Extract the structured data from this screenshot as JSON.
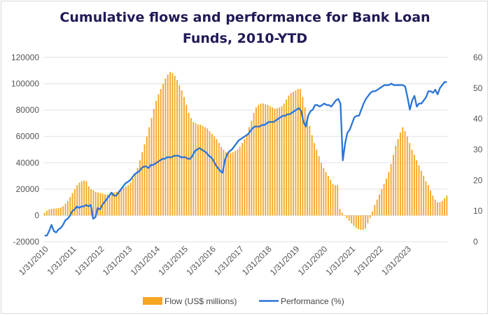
{
  "chart_data": {
    "type": "bar+line",
    "title_line1": "Cumulative flows and performance for Bank Loan",
    "title_line2": "Funds, 2010-YTD",
    "left_axis": {
      "ylim": [
        -20000,
        120000
      ],
      "ticks": [
        "-20000",
        "0",
        "20000",
        "40000",
        "60000",
        "80000",
        "100000",
        "120000"
      ],
      "tick_values": [
        -20000,
        0,
        20000,
        40000,
        60000,
        80000,
        100000,
        120000
      ]
    },
    "right_axis": {
      "ylim": [
        0,
        60
      ],
      "ticks": [
        "0",
        "10",
        "20",
        "30",
        "40",
        "50",
        "60"
      ],
      "tick_values": [
        0,
        10,
        20,
        30,
        40,
        50,
        60
      ]
    },
    "x_ticks": [
      "1/31/2010",
      "1/31/2011",
      "1/31/2012",
      "1/31/2013",
      "1/31/2014",
      "1/31/2015",
      "1/31/2016",
      "1/31/2017",
      "1/31/2018",
      "1/31/2019",
      "1/31/2020",
      "1/31/2021",
      "1/31/2022",
      "1/31/2023"
    ],
    "x_start": "2010-01",
    "series": [
      {
        "name": "Flow (US$ millions)",
        "kind": "bar",
        "color": "#f5a623",
        "values": [
          2000,
          3500,
          4500,
          5000,
          5200,
          5300,
          5500,
          6000,
          7000,
          9000,
          11000,
          14000,
          17000,
          20000,
          23000,
          25000,
          26000,
          26500,
          26000,
          22000,
          20000,
          19000,
          18000,
          17500,
          17000,
          16500,
          16000,
          16000,
          16500,
          17000,
          17500,
          18000,
          19000,
          20000,
          21000,
          22000,
          23000,
          25000,
          28000,
          32000,
          36000,
          42000,
          48000,
          54000,
          60000,
          67000,
          74000,
          81000,
          87000,
          92000,
          96000,
          100000,
          104000,
          107000,
          109000,
          108000,
          106000,
          103000,
          99000,
          95000,
          90000,
          84000,
          78000,
          74000,
          71000,
          70000,
          69000,
          69000,
          68000,
          67000,
          66000,
          64000,
          62000,
          60000,
          58000,
          55000,
          52000,
          50000,
          48000,
          47000,
          47500,
          48000,
          49000,
          50000,
          52000,
          55000,
          58000,
          62000,
          67000,
          72000,
          78000,
          82000,
          84000,
          85000,
          85000,
          84500,
          84000,
          83000,
          82000,
          81000,
          81500,
          82000,
          83000,
          85000,
          88000,
          91000,
          93000,
          94000,
          95000,
          96000,
          96000,
          90000,
          82000,
          75000,
          68000,
          61000,
          55000,
          50000,
          45000,
          40000,
          36000,
          33000,
          30000,
          27000,
          24000,
          23000,
          23000,
          5000,
          2000,
          0,
          -2000,
          -4000,
          -6000,
          -8000,
          -9500,
          -10500,
          -11000,
          -11000,
          -10000,
          -6000,
          -2000,
          3000,
          8000,
          12000,
          16000,
          20000,
          24000,
          28000,
          33000,
          39000,
          46000,
          53000,
          58000,
          63000,
          67000,
          64000,
          60000,
          55000,
          50000,
          46000,
          42000,
          38000,
          34000,
          30000,
          26000,
          23000,
          19000,
          15000,
          12000,
          10000,
          10000,
          11000,
          13000,
          15000
        ],
        "note_x_step": "monthly"
      },
      {
        "name": "Performance (%)",
        "kind": "line",
        "color": "#2a74d9",
        "values": [
          2,
          2,
          3.5,
          5.5,
          3.5,
          3,
          4,
          4.5,
          5.5,
          7,
          7.5,
          8.5,
          10,
          10.5,
          11.5,
          11,
          11.5,
          11.5,
          12,
          11.5,
          12,
          7.5,
          8,
          11,
          10.5,
          12,
          13,
          14,
          15,
          16,
          15,
          15,
          16,
          17,
          18,
          19,
          19.5,
          20,
          21,
          22,
          22.5,
          23,
          24,
          24.5,
          24.5,
          24,
          25,
          25,
          25.5,
          26,
          26.5,
          27,
          27,
          27.5,
          27.5,
          27.5,
          28,
          28,
          28,
          27.5,
          27.5,
          27.5,
          27,
          27,
          28,
          29.5,
          30,
          30.5,
          30,
          29.5,
          29,
          28,
          27.5,
          26.5,
          25,
          24,
          23,
          22.5,
          26.5,
          28.5,
          29.5,
          30,
          31,
          32,
          33,
          33.5,
          34,
          34.5,
          35,
          36,
          37,
          37.5,
          37.5,
          37.5,
          38,
          38,
          38.5,
          39,
          39,
          39,
          39.5,
          40,
          40.5,
          41,
          41,
          41.5,
          41.5,
          42,
          42.5,
          43,
          43.5,
          42.5,
          39,
          37.5,
          41,
          42.5,
          43,
          44.5,
          44.5,
          44,
          44.5,
          45,
          44.5,
          44.5,
          44,
          45,
          46,
          46.5,
          45,
          26.5,
          32,
          35.5,
          36.5,
          38.5,
          40.5,
          41,
          41,
          43,
          45,
          46.5,
          47.5,
          48.5,
          49,
          49,
          49.5,
          50,
          50.5,
          51,
          51,
          51,
          51.5,
          51,
          51,
          51,
          51,
          51,
          50.5,
          47,
          43,
          46,
          47.5,
          44,
          45,
          45,
          46,
          47,
          49,
          49,
          48.5,
          49.5,
          48,
          50,
          51,
          52,
          52
        ]
      }
    ],
    "legend_position": "bottom-center",
    "grid": "horizontal"
  }
}
